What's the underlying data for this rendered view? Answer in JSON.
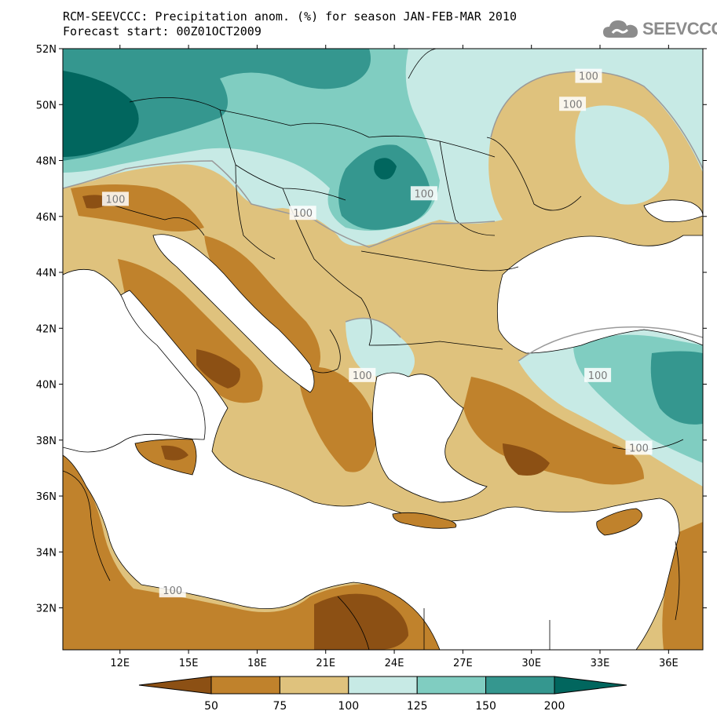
{
  "header": {
    "title_line1": "RCM-SEEVCCC: Precipitation anom. (%) for season JAN-FEB-MAR 2010",
    "title_line2": "Forecast start: 00Z01OCT2009"
  },
  "logo": {
    "text": "SEEVCCC",
    "icon": "cloud-icon",
    "color": "#8c8c8c"
  },
  "map": {
    "lon_range": [
      9.5,
      37.5
    ],
    "lat_range": [
      30.5,
      52
    ],
    "lat_ticks": [
      {
        "value": 52,
        "label": "52N"
      },
      {
        "value": 50,
        "label": "50N"
      },
      {
        "value": 48,
        "label": "48N"
      },
      {
        "value": 46,
        "label": "46N"
      },
      {
        "value": 44,
        "label": "44N"
      },
      {
        "value": 42,
        "label": "42N"
      },
      {
        "value": 40,
        "label": "40N"
      },
      {
        "value": 38,
        "label": "38N"
      },
      {
        "value": 36,
        "label": "36N"
      },
      {
        "value": 34,
        "label": "34N"
      },
      {
        "value": 32,
        "label": "32N"
      }
    ],
    "lon_ticks": [
      {
        "value": 12,
        "label": "12E"
      },
      {
        "value": 15,
        "label": "15E"
      },
      {
        "value": 18,
        "label": "18E"
      },
      {
        "value": 21,
        "label": "21E"
      },
      {
        "value": 24,
        "label": "24E"
      },
      {
        "value": 27,
        "label": "27E"
      },
      {
        "value": 30,
        "label": "30E"
      },
      {
        "value": 33,
        "label": "33E"
      },
      {
        "value": 36,
        "label": "36E"
      }
    ],
    "contour_labels": [
      {
        "text": "100",
        "lon": 11.8,
        "lat": 46.6
      },
      {
        "text": "100",
        "lon": 20.0,
        "lat": 46.1
      },
      {
        "text": "100",
        "lon": 25.3,
        "lat": 46.8
      },
      {
        "text": "100",
        "lon": 32.5,
        "lat": 51.0
      },
      {
        "text": "100",
        "lon": 31.8,
        "lat": 50.0
      },
      {
        "text": "100",
        "lon": 22.6,
        "lat": 40.3
      },
      {
        "text": "100",
        "lon": 32.9,
        "lat": 40.3
      },
      {
        "text": "100",
        "lon": 34.7,
        "lat": 37.7
      },
      {
        "text": "100",
        "lon": 14.3,
        "lat": 32.6
      }
    ]
  },
  "colorbar": {
    "colors": [
      "#8c5014",
      "#c0822c",
      "#dfc27d",
      "#c7eae5",
      "#80cdc1",
      "#35978f",
      "#01665e"
    ],
    "tick_labels": [
      "50",
      "75",
      "100",
      "125",
      "150",
      "200"
    ]
  }
}
